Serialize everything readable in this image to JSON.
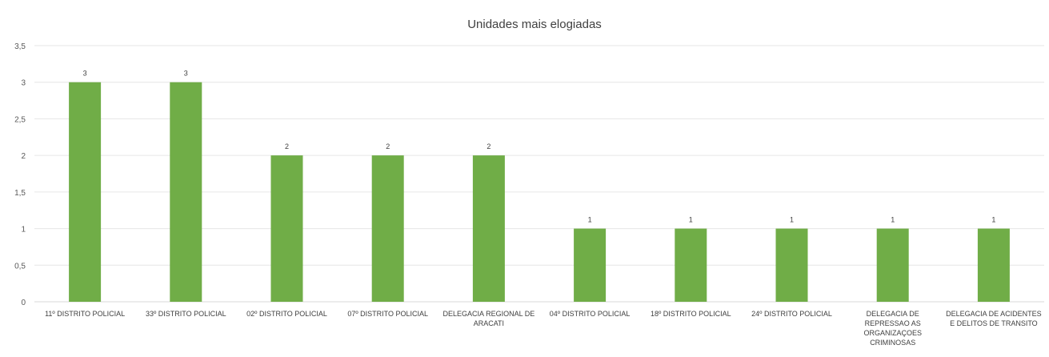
{
  "chart_data": {
    "type": "bar",
    "title": "Unidades mais elogiadas",
    "xlabel": "",
    "ylabel": "",
    "categories": [
      [
        "11º DISTRITO POLICIAL"
      ],
      [
        "33º DISTRITO POLICIAL"
      ],
      [
        "02º DISTRITO POLICIAL"
      ],
      [
        "07º DISTRITO POLICIAL"
      ],
      [
        "DELEGACIA REGIONAL DE",
        "ARACATI"
      ],
      [
        "04º DISTRITO POLICIAL"
      ],
      [
        "18º DISTRITO POLICIAL"
      ],
      [
        "24º DISTRITO POLICIAL"
      ],
      [
        "DELEGACIA DE",
        "REPRESSAO AS",
        "ORGANIZAÇOES",
        "CRIMINOSAS"
      ],
      [
        "DELEGACIA DE ACIDENTES",
        "E DELITOS DE TRANSITO"
      ]
    ],
    "values": [
      3,
      3,
      2,
      2,
      2,
      1,
      1,
      1,
      1,
      1
    ],
    "data_labels": [
      "3",
      "3",
      "2",
      "2",
      "2",
      "1",
      "1",
      "1",
      "1",
      "1"
    ],
    "ylim": [
      0,
      3.5
    ],
    "yticks": [
      "0",
      "0,5",
      "1",
      "1,5",
      "2",
      "2,5",
      "3",
      "3,5"
    ],
    "grid": true,
    "bar_color": "#70ad47"
  }
}
